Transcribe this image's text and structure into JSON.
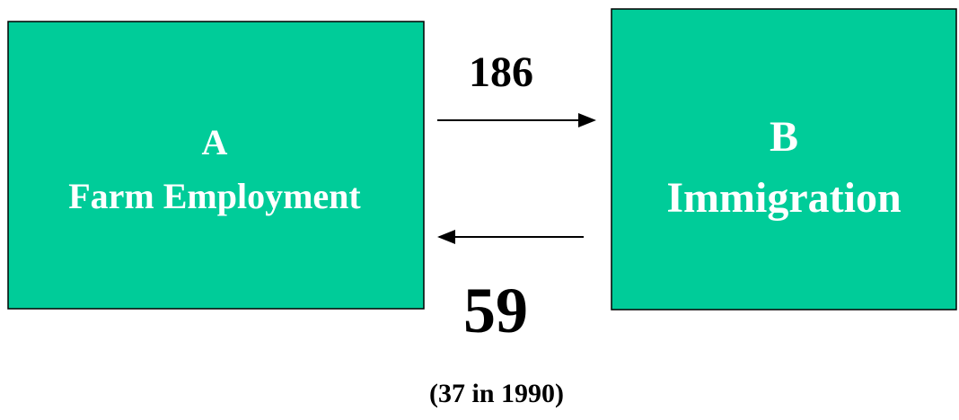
{
  "nodes": [
    {
      "letter": "A",
      "label": "Farm Employment"
    },
    {
      "letter": "B",
      "label": "Immigration"
    }
  ],
  "edges": [
    {
      "label": "186"
    },
    {
      "label": "59"
    }
  ],
  "note": "(37 in 1990)"
}
